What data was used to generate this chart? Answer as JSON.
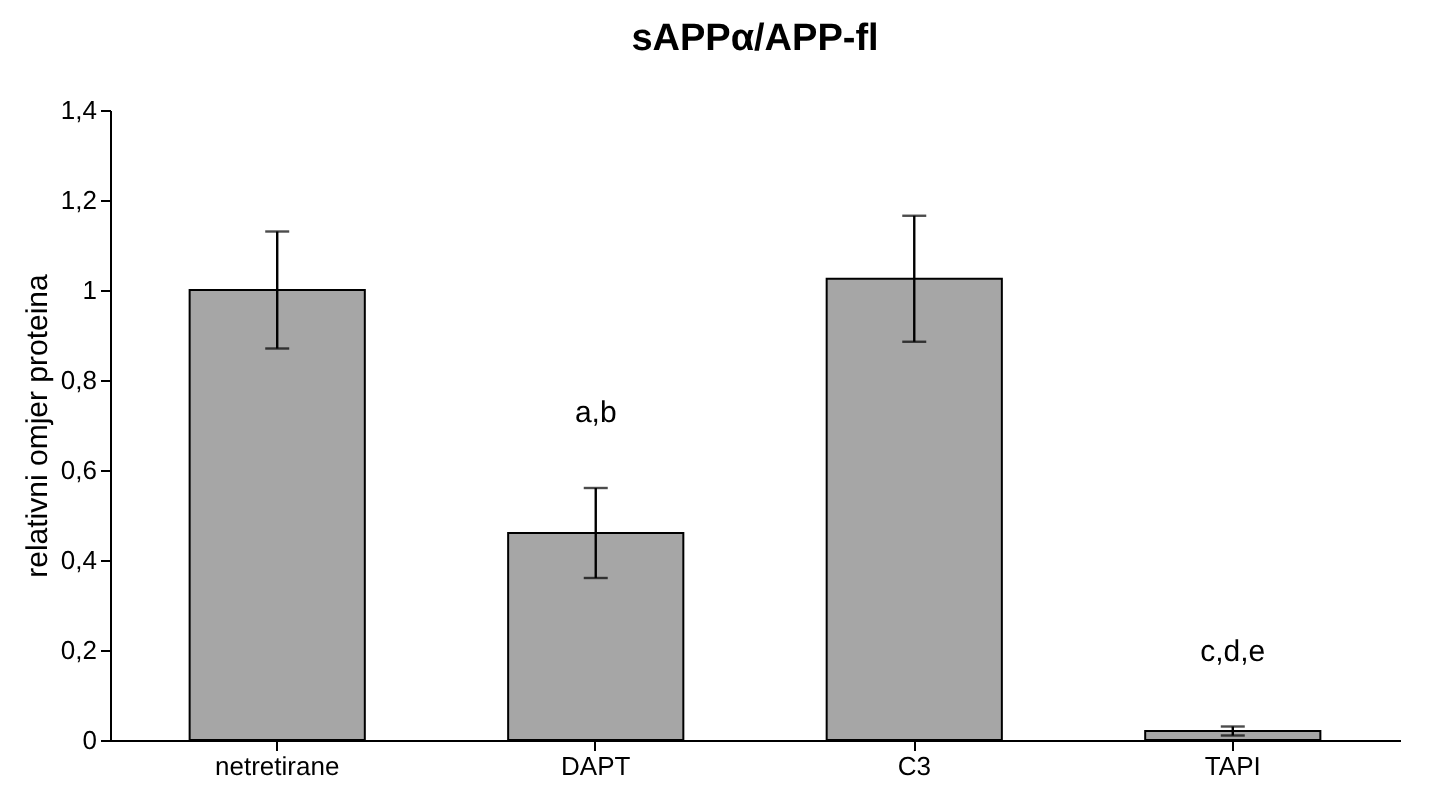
{
  "chart_data": {
    "type": "bar",
    "title": "sAPPα/APP-fl",
    "ylabel": "relativni omjer proteina",
    "categories": [
      "netretirane",
      "DAPT",
      "C3",
      "TAPI"
    ],
    "values": [
      1.0,
      0.46,
      1.025,
      0.02
    ],
    "errors": [
      0.13,
      0.1,
      0.14,
      0.01
    ],
    "color": "#a6a6a6",
    "ylim": [
      0,
      1.4
    ],
    "yticks": [
      0,
      {
        "value": 0.2,
        "label": "0,2"
      },
      {
        "value": 0.4,
        "label": "0,4"
      },
      {
        "value": 0.6,
        "label": "0,6"
      },
      {
        "value": 0.8,
        "label": "0,8"
      },
      1,
      {
        "value": 1.2,
        "label": "1,2"
      },
      {
        "value": 1.4,
        "label": "1,4"
      }
    ],
    "annotations": [
      "a,b",
      "c,d,e"
    ],
    "grid": false
  }
}
